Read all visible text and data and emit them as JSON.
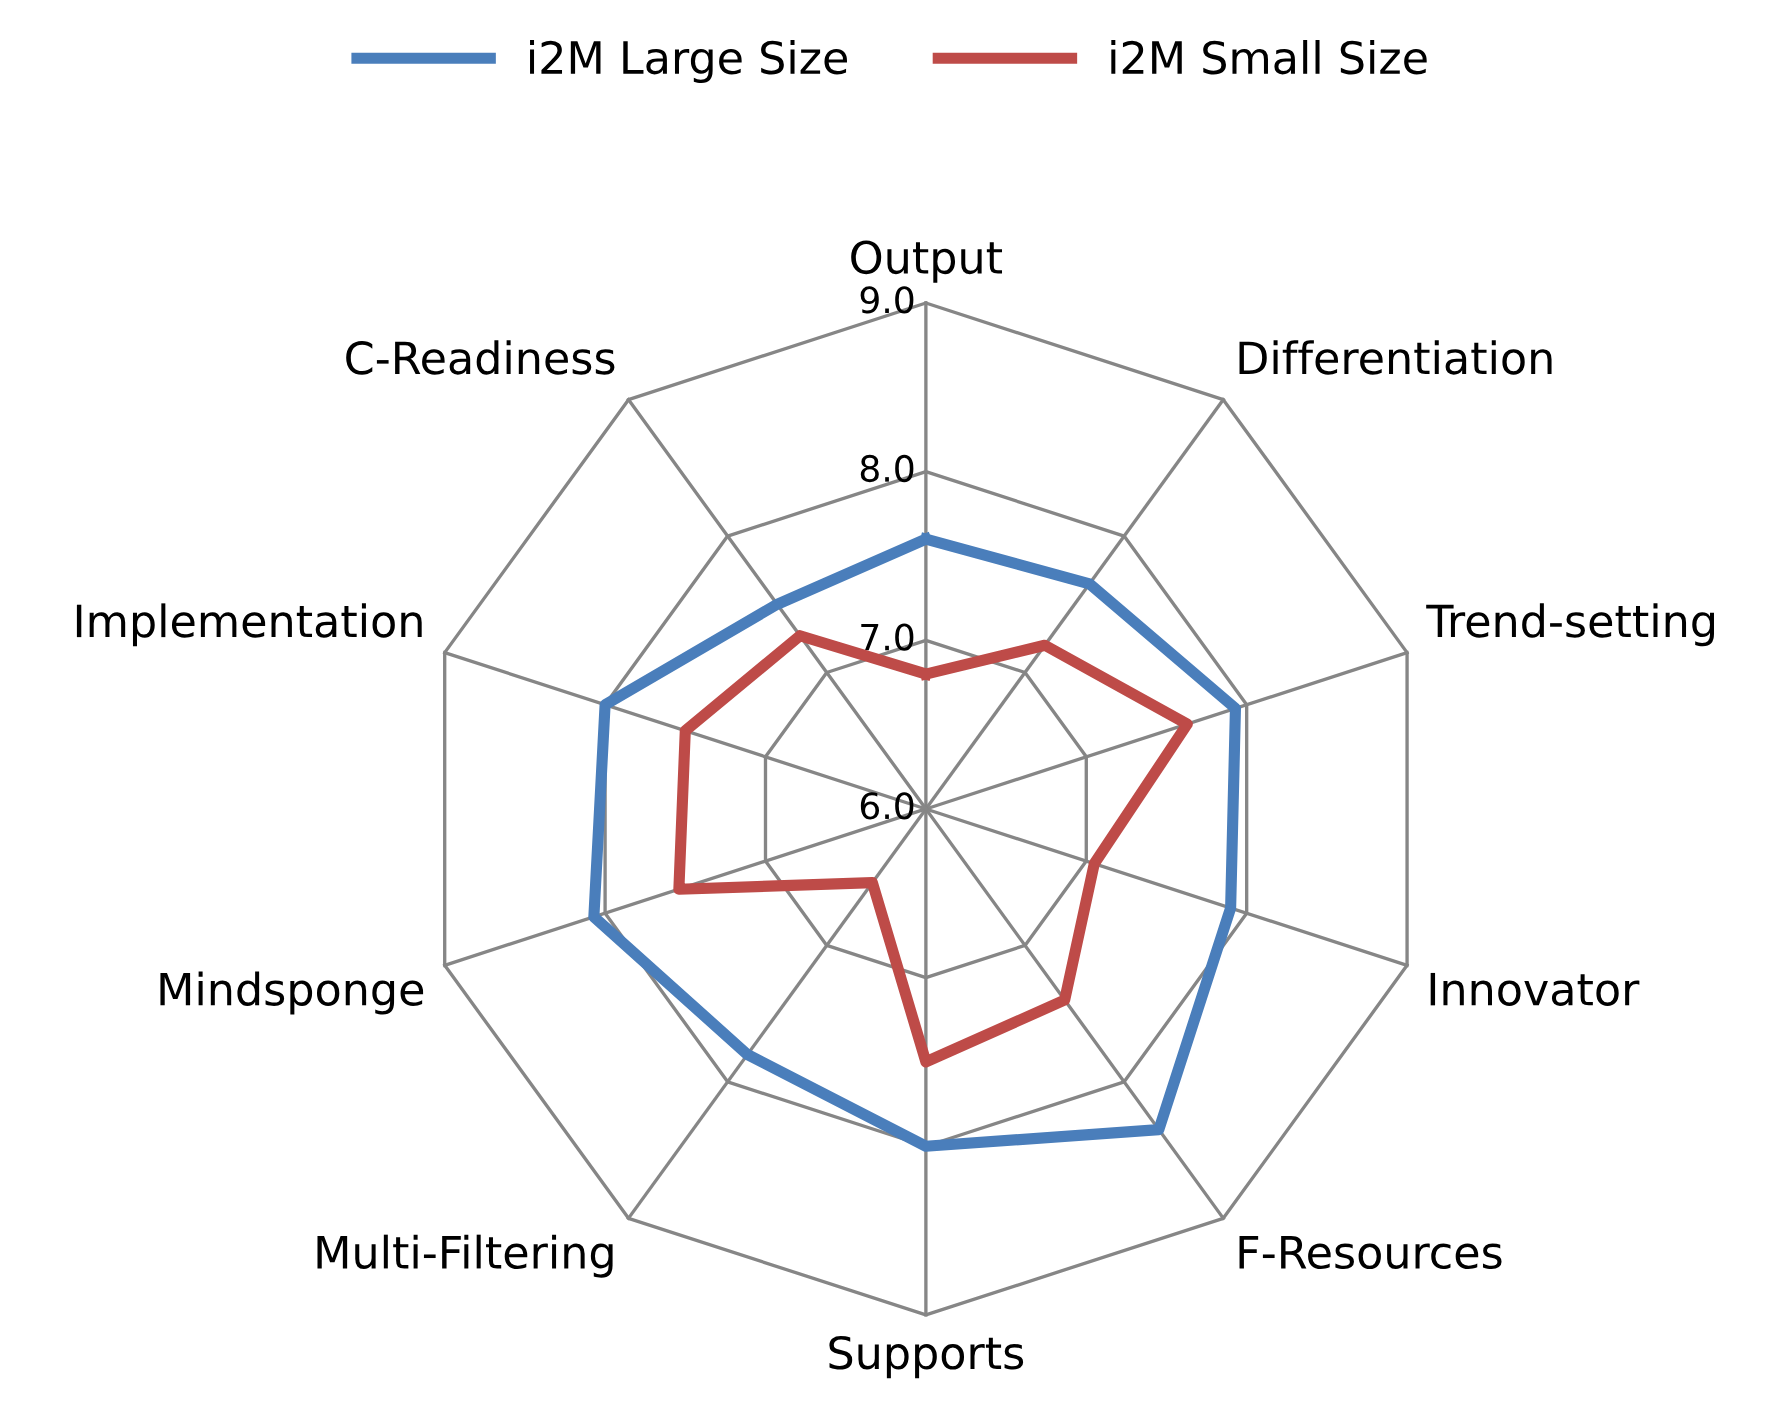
{
  "chart_data": {
    "type": "radar",
    "categories": [
      "Output",
      "Differentiation",
      "Trend-setting",
      "Innovator",
      "F-Resources",
      "Supports",
      "Multi-Filtering",
      "Mindsponge",
      "Implementation",
      "C-Readiness"
    ],
    "series": [
      {
        "name": "i2M Large Size",
        "color": "#4a7ebb",
        "values": [
          7.6,
          7.65,
          7.93,
          7.9,
          8.35,
          8.0,
          7.8,
          8.07,
          8.0,
          7.5
        ]
      },
      {
        "name": "i2M Small Size",
        "color": "#be4b48",
        "values": [
          6.8,
          7.2,
          7.63,
          7.05,
          7.4,
          7.5,
          6.54,
          7.54,
          7.5,
          7.27
        ]
      }
    ],
    "ylim": [
      6,
      9
    ],
    "yticks": [
      {
        "value": 6,
        "label": "6.0"
      },
      {
        "value": 7,
        "label": "7.0"
      },
      {
        "value": 8,
        "label": "8.0"
      },
      {
        "value": 9,
        "label": "9.0"
      }
    ],
    "grid": true,
    "legend": "top",
    "marker": "none",
    "line_style": "solid"
  }
}
